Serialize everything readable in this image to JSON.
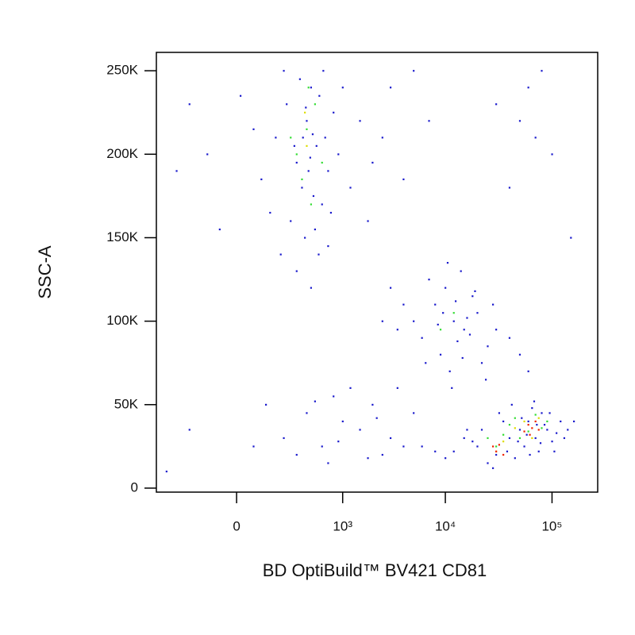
{
  "chart_data": {
    "type": "scatter",
    "xlabel": "BD OptiBuild™  BV421 CD81",
    "ylabel": "SSC-A",
    "xscale": "biex",
    "xlim": [
      -525,
      267000
    ],
    "ylim": [
      -2400,
      261000
    ],
    "xticks": [
      0,
      {
        "value": 1000,
        "label": "10³"
      },
      {
        "value": 10000,
        "label": "10⁴"
      },
      {
        "value": 100000,
        "label": "10⁵"
      }
    ],
    "yticks": [
      0,
      {
        "value": 50000,
        "label": "50K"
      },
      {
        "value": 100000,
        "label": "100K"
      },
      {
        "value": 150000,
        "label": "150K"
      },
      {
        "value": 200000,
        "label": "200K"
      },
      {
        "value": 250000,
        "label": "250K"
      }
    ],
    "series": [
      {
        "color": "#1a1acc",
        "x": [
          150,
          220,
          300,
          350,
          400,
          450,
          520,
          600,
          700,
          800,
          -100,
          50,
          80,
          250,
          330,
          380,
          480,
          560,
          650,
          900,
          1200,
          1500,
          2000,
          3000,
          5000,
          10,
          -300,
          120,
          200,
          280,
          420,
          500,
          550,
          620,
          750,
          1000,
          1800,
          2500,
          4000,
          7000,
          180,
          300,
          450,
          700,
          -50,
          -200,
          360,
          440,
          390,
          470,
          12000,
          8000,
          15000,
          10000,
          20000,
          6000,
          25000,
          9000,
          14000,
          18000,
          5000,
          30000,
          11000,
          7000,
          13000,
          22000,
          4000,
          16000,
          40000,
          3500,
          9500,
          12500,
          17000,
          8500,
          19000,
          10500,
          6500,
          28000,
          50000,
          3000,
          11500,
          24000,
          60000,
          2500,
          14500,
          200,
          400,
          600,
          800,
          1000,
          1500,
          2000,
          3000,
          4000,
          5000,
          300,
          700,
          1200,
          2500,
          -200,
          50,
          100,
          3500,
          6000,
          8000,
          500,
          900,
          1800,
          2200,
          -400,
          20000,
          30000,
          40000,
          50000,
          60000,
          70000,
          80000,
          90000,
          100000,
          120000,
          15000,
          25000,
          35000,
          45000,
          55000,
          65000,
          75000,
          85000,
          110000,
          140000,
          12000,
          18000,
          22000,
          28000,
          32000,
          38000,
          42000,
          48000,
          52000,
          58000,
          62000,
          68000,
          72000,
          78000,
          95000,
          105000,
          130000,
          160000,
          10000,
          16000,
          30000,
          50000,
          60000,
          70000,
          80000,
          100000,
          40000,
          150000
        ],
        "values": [
          210000,
          230000,
          195000,
          180000,
          220000,
          240000,
          205000,
          170000,
          190000,
          225000,
          200000,
          215000,
          185000,
          160000,
          245000,
          150000,
          175000,
          235000,
          210000,
          200000,
          180000,
          220000,
          195000,
          240000,
          250000,
          235000,
          190000,
          165000,
          250000,
          205000,
          190000,
          155000,
          140000,
          250000,
          165000,
          240000,
          160000,
          210000,
          185000,
          220000,
          140000,
          130000,
          120000,
          145000,
          155000,
          230000,
          210000,
          198000,
          228000,
          212000,
          100000,
          110000,
          95000,
          120000,
          105000,
          90000,
          85000,
          80000,
          130000,
          115000,
          100000,
          95000,
          70000,
          125000,
          88000,
          75000,
          110000,
          102000,
          90000,
          95000,
          105000,
          112000,
          92000,
          98000,
          118000,
          135000,
          75000,
          110000,
          80000,
          120000,
          60000,
          65000,
          70000,
          100000,
          78000,
          30000,
          45000,
          25000,
          55000,
          40000,
          35000,
          50000,
          30000,
          25000,
          45000,
          20000,
          15000,
          60000,
          20000,
          35000,
          25000,
          50000,
          60000,
          25000,
          22000,
          52000,
          28000,
          18000,
          42000,
          10000,
          25000,
          20000,
          30000,
          35000,
          40000,
          30000,
          45000,
          35000,
          28000,
          40000,
          30000,
          15000,
          40000,
          18000,
          25000,
          48000,
          22000,
          38000,
          33000,
          35000,
          22000,
          28000,
          35000,
          12000,
          45000,
          22000,
          50000,
          28000,
          42000,
          32000,
          20000,
          52000,
          38000,
          27000,
          45000,
          22000,
          30000,
          40000,
          18000,
          35000,
          230000,
          220000,
          240000,
          210000,
          250000,
          200000,
          180000,
          150000
        ]
      },
      {
        "color": "#33dd33",
        "x": [
          300,
          400,
          350,
          500,
          450,
          250,
          600,
          420,
          12000,
          9000,
          40000,
          50000,
          70000,
          30000,
          60000,
          45000,
          25000,
          90000,
          35000,
          80000
        ],
        "values": [
          200000,
          215000,
          185000,
          230000,
          170000,
          210000,
          195000,
          240000,
          105000,
          95000,
          38000,
          30000,
          44000,
          25000,
          34000,
          42000,
          30000,
          40000,
          32000,
          36000
        ]
      },
      {
        "color": "#dddd00",
        "x": [
          400,
          380,
          45000,
          55000,
          35000,
          65000,
          30000,
          75000
        ],
        "values": [
          205000,
          225000,
          36000,
          40000,
          28000,
          30000,
          22000,
          42000
        ]
      },
      {
        "color": "#ee2200",
        "x": [
          60000,
          65000,
          70000,
          55000,
          30000,
          28000,
          35000,
          75000,
          62000,
          32000
        ],
        "values": [
          38000,
          36000,
          40000,
          34000,
          22000,
          25000,
          20000,
          35000,
          32000,
          26000
        ]
      }
    ]
  }
}
